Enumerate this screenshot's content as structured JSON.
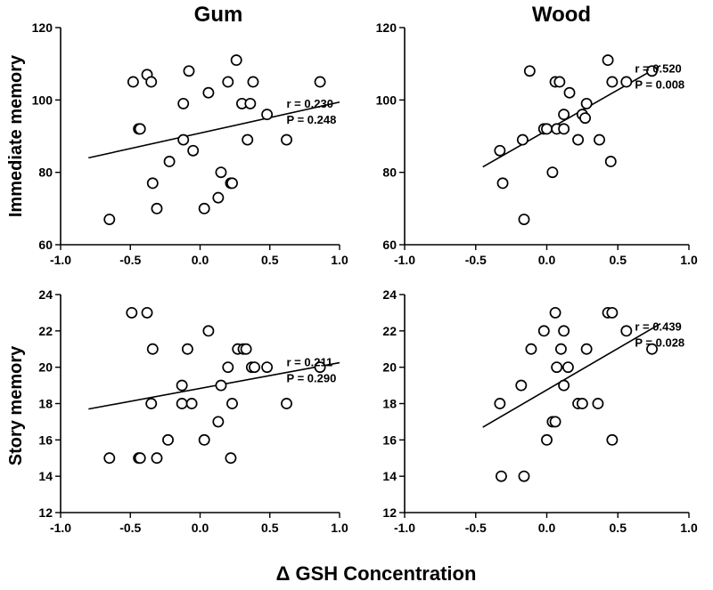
{
  "figure": {
    "column_titles": [
      "Gum",
      "Wood"
    ],
    "row_labels": [
      "Immediate memory",
      "Story memory"
    ],
    "x_title": "Δ GSH Concentration"
  },
  "chart_data": [
    {
      "id": "gum-immediate",
      "type": "scatter",
      "title": "Gum",
      "ylabel": "Immediate memory",
      "xlim": [
        -1.0,
        1.0
      ],
      "ylim": [
        60,
        120
      ],
      "xticks": [
        "-1.0",
        "-0.5",
        "0.0",
        "0.5",
        "1.0"
      ],
      "yticks": [
        "60",
        "80",
        "100",
        "120"
      ],
      "points": [
        [
          -0.65,
          67
        ],
        [
          -0.48,
          105
        ],
        [
          -0.38,
          107
        ],
        [
          -0.35,
          105
        ],
        [
          -0.44,
          92
        ],
        [
          -0.43,
          92
        ],
        [
          -0.34,
          77
        ],
        [
          -0.31,
          70
        ],
        [
          -0.22,
          83
        ],
        [
          -0.12,
          89
        ],
        [
          -0.12,
          99
        ],
        [
          -0.08,
          108
        ],
        [
          -0.05,
          86
        ],
        [
          0.03,
          70
        ],
        [
          0.06,
          102
        ],
        [
          0.13,
          73
        ],
        [
          0.15,
          80
        ],
        [
          0.2,
          105
        ],
        [
          0.22,
          77
        ],
        [
          0.23,
          77
        ],
        [
          0.26,
          111
        ],
        [
          0.3,
          99
        ],
        [
          0.34,
          89
        ],
        [
          0.36,
          99
        ],
        [
          0.38,
          105
        ],
        [
          0.48,
          96
        ],
        [
          0.62,
          89
        ],
        [
          0.86,
          105
        ]
      ],
      "fit": {
        "x": [
          -0.8,
          1.0
        ],
        "y": [
          84,
          99.4
        ]
      },
      "stats": {
        "r": "r = 0.230",
        "p": "P = 0.248"
      }
    },
    {
      "id": "wood-immediate",
      "type": "scatter",
      "title": "Wood",
      "ylabel": "",
      "xlim": [
        -1.0,
        1.0
      ],
      "ylim": [
        60,
        120
      ],
      "xticks": [
        "-1.0",
        "-0.5",
        "0.0",
        "0.5",
        "1.0"
      ],
      "yticks": [
        "60",
        "80",
        "100",
        "120"
      ],
      "points": [
        [
          -0.33,
          86
        ],
        [
          -0.31,
          77
        ],
        [
          -0.17,
          89
        ],
        [
          -0.16,
          67
        ],
        [
          -0.12,
          108
        ],
        [
          -0.02,
          92
        ],
        [
          0.0,
          92
        ],
        [
          0.04,
          80
        ],
        [
          0.06,
          105
        ],
        [
          0.07,
          92
        ],
        [
          0.09,
          105
        ],
        [
          0.12,
          92
        ],
        [
          0.12,
          96
        ],
        [
          0.16,
          102
        ],
        [
          0.22,
          89
        ],
        [
          0.25,
          96
        ],
        [
          0.27,
          95
        ],
        [
          0.28,
          99
        ],
        [
          0.37,
          89
        ],
        [
          0.43,
          111
        ],
        [
          0.45,
          83
        ],
        [
          0.46,
          105
        ],
        [
          0.56,
          105
        ],
        [
          0.74,
          108
        ]
      ],
      "fit": {
        "x": [
          -0.45,
          0.8
        ],
        "y": [
          81.5,
          109.5
        ]
      },
      "stats": {
        "r": "r = 0.520",
        "p": "P = 0.008"
      }
    },
    {
      "id": "gum-story",
      "type": "scatter",
      "title": "",
      "ylabel": "Story memory",
      "xlim": [
        -1.0,
        1.0
      ],
      "ylim": [
        12,
        24
      ],
      "xticks": [
        "-1.0",
        "-0.5",
        "0.0",
        "0.5",
        "1.0"
      ],
      "yticks": [
        "12",
        "14",
        "16",
        "18",
        "20",
        "22",
        "24"
      ],
      "points": [
        [
          -0.65,
          15
        ],
        [
          -0.49,
          23
        ],
        [
          -0.44,
          15
        ],
        [
          -0.43,
          15
        ],
        [
          -0.38,
          23
        ],
        [
          -0.35,
          18
        ],
        [
          -0.34,
          21
        ],
        [
          -0.31,
          15
        ],
        [
          -0.23,
          16
        ],
        [
          -0.13,
          18
        ],
        [
          -0.13,
          19
        ],
        [
          -0.09,
          21
        ],
        [
          -0.06,
          18
        ],
        [
          0.03,
          16
        ],
        [
          0.06,
          22
        ],
        [
          0.13,
          17
        ],
        [
          0.15,
          19
        ],
        [
          0.2,
          20
        ],
        [
          0.22,
          15
        ],
        [
          0.23,
          18
        ],
        [
          0.27,
          21
        ],
        [
          0.31,
          21
        ],
        [
          0.33,
          21
        ],
        [
          0.37,
          20
        ],
        [
          0.39,
          20
        ],
        [
          0.48,
          20
        ],
        [
          0.62,
          18
        ],
        [
          0.86,
          20
        ]
      ],
      "fit": {
        "x": [
          -0.8,
          1.0
        ],
        "y": [
          17.7,
          20.25
        ]
      },
      "stats": {
        "r": "r = 0.211",
        "p": "P = 0.290"
      }
    },
    {
      "id": "wood-story",
      "type": "scatter",
      "title": "",
      "ylabel": "",
      "xlim": [
        -1.0,
        1.0
      ],
      "ylim": [
        12,
        24
      ],
      "xticks": [
        "-1.0",
        "-0.5",
        "0.0",
        "0.5",
        "1.0"
      ],
      "yticks": [
        "12",
        "14",
        "16",
        "18",
        "20",
        "22",
        "24"
      ],
      "points": [
        [
          -0.33,
          18
        ],
        [
          -0.32,
          14
        ],
        [
          -0.18,
          19
        ],
        [
          -0.16,
          14
        ],
        [
          -0.11,
          21
        ],
        [
          -0.02,
          22
        ],
        [
          0.0,
          16
        ],
        [
          0.04,
          17
        ],
        [
          0.06,
          17
        ],
        [
          0.06,
          23
        ],
        [
          0.07,
          20
        ],
        [
          0.1,
          21
        ],
        [
          0.12,
          19
        ],
        [
          0.12,
          22
        ],
        [
          0.15,
          20
        ],
        [
          0.22,
          18
        ],
        [
          0.25,
          18
        ],
        [
          0.28,
          21
        ],
        [
          0.36,
          18
        ],
        [
          0.43,
          23
        ],
        [
          0.46,
          23
        ],
        [
          0.46,
          16
        ],
        [
          0.56,
          22
        ],
        [
          0.74,
          21
        ]
      ],
      "fit": {
        "x": [
          -0.45,
          0.8
        ],
        "y": [
          16.7,
          22.4
        ]
      },
      "stats": {
        "r": "r = 0.439",
        "p": "P = 0.028"
      }
    }
  ]
}
